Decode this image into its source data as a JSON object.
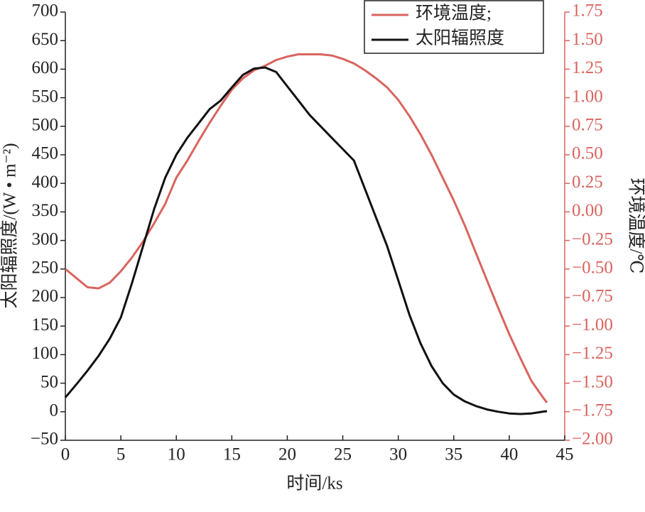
{
  "chart_data": {
    "type": "line",
    "xlabel": "时间/ks",
    "ylabel": "太阳辐照度/(W • m⁻²)",
    "y2label": "环境温度/℃",
    "x": [
      0,
      1,
      2,
      3,
      4,
      5,
      6,
      7,
      8,
      9,
      10,
      11,
      12,
      13,
      14,
      15,
      16,
      17,
      18,
      19,
      20,
      21,
      22,
      23,
      24,
      25,
      26,
      27,
      28,
      29,
      30,
      31,
      32,
      33,
      34,
      35,
      36,
      37,
      38,
      39,
      40,
      41,
      42,
      43,
      43.4
    ],
    "series": [
      {
        "name": "环境温度;",
        "color": "#d9645f",
        "axis": "y2",
        "values": [
          -0.5,
          -0.58,
          -0.66,
          -0.67,
          -0.62,
          -0.52,
          -0.4,
          -0.26,
          -0.1,
          0.07,
          0.3,
          0.45,
          0.62,
          0.78,
          0.93,
          1.07,
          1.17,
          1.24,
          1.28,
          1.33,
          1.36,
          1.38,
          1.38,
          1.38,
          1.37,
          1.34,
          1.3,
          1.24,
          1.17,
          1.09,
          0.98,
          0.84,
          0.68,
          0.5,
          0.3,
          0.1,
          -0.12,
          -0.36,
          -0.6,
          -0.84,
          -1.07,
          -1.28,
          -1.48,
          -1.62,
          -1.67
        ]
      },
      {
        "name": "太阳辐照度",
        "color": "#111111",
        "values": [
          25,
          48,
          72,
          98,
          128,
          165,
          225,
          290,
          355,
          410,
          450,
          480,
          505,
          530,
          545,
          568,
          590,
          601,
          603,
          595,
          570,
          545,
          520,
          500,
          480,
          460,
          440,
          390,
          340,
          290,
          230,
          170,
          120,
          80,
          50,
          30,
          18,
          10,
          4,
          0,
          -3,
          -4,
          -3,
          0,
          1
        ]
      }
    ],
    "xlim": [
      0,
      45
    ],
    "xticks": [
      0,
      5,
      10,
      15,
      20,
      25,
      30,
      35,
      40,
      45
    ],
    "ylim": [
      -50,
      700
    ],
    "yticks": [
      {
        "value": -50,
        "label": "−50"
      },
      0,
      50,
      100,
      150,
      200,
      250,
      300,
      350,
      400,
      450,
      500,
      550,
      600,
      650,
      700
    ],
    "y2lim": [
      -2,
      1.75
    ],
    "y2ticks": [
      {
        "value": -2,
        "label": "−2.00"
      },
      {
        "value": -1.75,
        "label": "−1.75"
      },
      {
        "value": -1.5,
        "label": "−1.50"
      },
      {
        "value": -1.25,
        "label": "−1.25"
      },
      {
        "value": -1,
        "label": "−1.00"
      },
      {
        "value": -0.75,
        "label": "−0.75"
      },
      {
        "value": -0.5,
        "label": "−0.50"
      },
      {
        "value": -0.25,
        "label": "−0.25"
      },
      {
        "value": 0,
        "label": "0.00"
      },
      0.25,
      {
        "value": 0.5,
        "label": "0.50"
      },
      0.75,
      {
        "value": 1,
        "label": "1.00"
      },
      1.25,
      {
        "value": 1.5,
        "label": "1.50"
      },
      1.75
    ],
    "y2color": "#d9645f",
    "legend": "upper right"
  }
}
